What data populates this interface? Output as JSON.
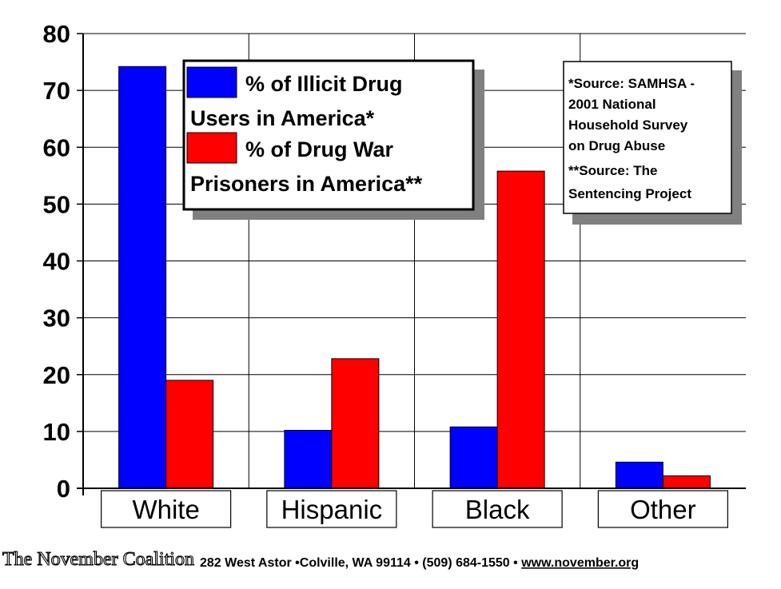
{
  "chart_data": {
    "type": "bar",
    "categories": [
      "White",
      "Hispanic",
      "Black",
      "Other"
    ],
    "series": [
      {
        "name": "% of Illicit Drug Users in America*",
        "color": "#0000ff",
        "values": [
          74.2,
          10.2,
          10.8,
          4.6
        ]
      },
      {
        "name": "% of Drug War Prisoners in America**",
        "color": "#ff0000",
        "values": [
          19.0,
          22.8,
          55.8,
          2.2
        ]
      }
    ],
    "ylim": [
      0,
      80
    ],
    "yticks": [
      "0",
      "10",
      "20",
      "30",
      "40",
      "50",
      "60",
      "70",
      "80"
    ],
    "grid": true,
    "legend": {
      "placement": "top-center",
      "lines": [
        "% of Illicit Drug",
        "Users in America*",
        "% of Drug War",
        "Prisoners in America**"
      ]
    },
    "annotation": {
      "placement": "top-right",
      "lines": [
        "*Source: SAMHSA -",
        "2001 National",
        "Household Survey",
        "on Drug Abuse",
        "**Source: The",
        "Sentencing Project"
      ]
    }
  },
  "footer": {
    "logo_text": "The November Coalition",
    "address": "282 West Astor  •Colville, WA 99114 • (509) 684-1550 • ",
    "website": "www.november.org"
  }
}
